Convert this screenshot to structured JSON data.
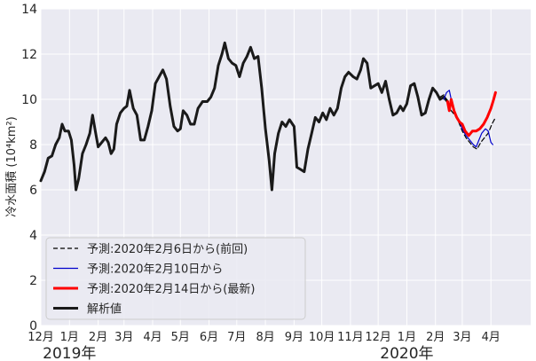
{
  "chart_data": {
    "type": "line",
    "xlabel": "",
    "ylabel": "冷水面積 (10⁴km²)",
    "ylim": [
      0,
      14
    ],
    "yticks": [
      0,
      2,
      4,
      6,
      8,
      10,
      12,
      14
    ],
    "x_range": [
      "2018-12-01",
      "2020-05-14"
    ],
    "month_ticks": [
      {
        "date": "2018-12-01",
        "label": "12月"
      },
      {
        "date": "2019-01-01",
        "label": "1月"
      },
      {
        "date": "2019-02-01",
        "label": "2月"
      },
      {
        "date": "2019-03-01",
        "label": "3月"
      },
      {
        "date": "2019-04-01",
        "label": "4月"
      },
      {
        "date": "2019-05-01",
        "label": "5月"
      },
      {
        "date": "2019-06-01",
        "label": "6月"
      },
      {
        "date": "2019-07-01",
        "label": "7月"
      },
      {
        "date": "2019-08-01",
        "label": "8月"
      },
      {
        "date": "2019-09-01",
        "label": "9月"
      },
      {
        "date": "2019-10-01",
        "label": "10月"
      },
      {
        "date": "2019-11-01",
        "label": "11月"
      },
      {
        "date": "2019-12-01",
        "label": "12月"
      },
      {
        "date": "2020-01-01",
        "label": "1月"
      },
      {
        "date": "2020-02-01",
        "label": "2月"
      },
      {
        "date": "2020-03-01",
        "label": "3月"
      },
      {
        "date": "2020-04-01",
        "label": "4月"
      }
    ],
    "year_labels": [
      {
        "date": "2019-01-01",
        "label": "2019年"
      },
      {
        "date": "2020-01-01",
        "label": "2020年"
      }
    ],
    "grid": true,
    "background": "#eaeaf2",
    "legend_position": "lower-left",
    "series": [
      {
        "name": "解析値",
        "color": "#1a1a1a",
        "style": "solid",
        "width": 3,
        "points": [
          [
            "2018-12-01",
            6.4
          ],
          [
            "2018-12-05",
            6.8
          ],
          [
            "2018-12-09",
            7.4
          ],
          [
            "2018-12-13",
            7.5
          ],
          [
            "2018-12-17",
            8.0
          ],
          [
            "2018-12-21",
            8.3
          ],
          [
            "2018-12-24",
            8.9
          ],
          [
            "2018-12-27",
            8.6
          ],
          [
            "2018-12-31",
            8.6
          ],
          [
            "2019-01-03",
            8.2
          ],
          [
            "2019-01-06",
            7.1
          ],
          [
            "2019-01-08",
            6.0
          ],
          [
            "2019-01-11",
            6.5
          ],
          [
            "2019-01-15",
            7.6
          ],
          [
            "2019-01-19",
            8.0
          ],
          [
            "2019-01-23",
            8.5
          ],
          [
            "2019-01-26",
            9.3
          ],
          [
            "2019-01-29",
            8.6
          ],
          [
            "2019-02-01",
            7.9
          ],
          [
            "2019-02-05",
            8.1
          ],
          [
            "2019-02-09",
            8.3
          ],
          [
            "2019-02-12",
            8.1
          ],
          [
            "2019-02-15",
            7.6
          ],
          [
            "2019-02-18",
            7.8
          ],
          [
            "2019-02-21",
            8.9
          ],
          [
            "2019-02-25",
            9.4
          ],
          [
            "2019-03-01",
            9.6
          ],
          [
            "2019-03-04",
            9.7
          ],
          [
            "2019-03-07",
            10.4
          ],
          [
            "2019-03-11",
            9.6
          ],
          [
            "2019-03-15",
            9.3
          ],
          [
            "2019-03-19",
            8.2
          ],
          [
            "2019-03-23",
            8.2
          ],
          [
            "2019-03-27",
            8.8
          ],
          [
            "2019-03-31",
            9.5
          ],
          [
            "2019-04-04",
            10.7
          ],
          [
            "2019-04-08",
            11.0
          ],
          [
            "2019-04-12",
            11.3
          ],
          [
            "2019-04-16",
            10.9
          ],
          [
            "2019-04-20",
            9.7
          ],
          [
            "2019-04-24",
            8.8
          ],
          [
            "2019-04-28",
            8.6
          ],
          [
            "2019-05-01",
            8.7
          ],
          [
            "2019-05-04",
            9.5
          ],
          [
            "2019-05-08",
            9.3
          ],
          [
            "2019-05-12",
            8.9
          ],
          [
            "2019-05-16",
            8.9
          ],
          [
            "2019-05-20",
            9.6
          ],
          [
            "2019-05-25",
            9.9
          ],
          [
            "2019-05-30",
            9.9
          ],
          [
            "2019-06-03",
            10.1
          ],
          [
            "2019-06-07",
            10.5
          ],
          [
            "2019-06-11",
            11.5
          ],
          [
            "2019-06-15",
            12.0
          ],
          [
            "2019-06-18",
            12.5
          ],
          [
            "2019-06-22",
            11.8
          ],
          [
            "2019-06-26",
            11.6
          ],
          [
            "2019-06-30",
            11.5
          ],
          [
            "2019-07-04",
            11.0
          ],
          [
            "2019-07-08",
            11.6
          ],
          [
            "2019-07-12",
            11.9
          ],
          [
            "2019-07-16",
            12.3
          ],
          [
            "2019-07-20",
            11.8
          ],
          [
            "2019-07-24",
            11.9
          ],
          [
            "2019-07-28",
            10.5
          ],
          [
            "2019-08-01",
            8.7
          ],
          [
            "2019-08-05",
            7.3
          ],
          [
            "2019-08-08",
            6.0
          ],
          [
            "2019-08-11",
            7.6
          ],
          [
            "2019-08-15",
            8.5
          ],
          [
            "2019-08-19",
            9.0
          ],
          [
            "2019-08-23",
            8.8
          ],
          [
            "2019-08-27",
            9.1
          ],
          [
            "2019-09-01",
            8.8
          ],
          [
            "2019-09-04",
            7.0
          ],
          [
            "2019-09-08",
            6.9
          ],
          [
            "2019-09-12",
            6.8
          ],
          [
            "2019-09-16",
            7.8
          ],
          [
            "2019-09-20",
            8.5
          ],
          [
            "2019-09-24",
            9.2
          ],
          [
            "2019-09-28",
            9.0
          ],
          [
            "2019-10-02",
            9.4
          ],
          [
            "2019-10-06",
            9.1
          ],
          [
            "2019-10-10",
            9.6
          ],
          [
            "2019-10-14",
            9.3
          ],
          [
            "2019-10-18",
            9.6
          ],
          [
            "2019-10-22",
            10.5
          ],
          [
            "2019-10-26",
            11.0
          ],
          [
            "2019-10-30",
            11.2
          ],
          [
            "2019-11-04",
            11.0
          ],
          [
            "2019-11-08",
            10.9
          ],
          [
            "2019-11-12",
            11.3
          ],
          [
            "2019-11-15",
            11.8
          ],
          [
            "2019-11-19",
            11.6
          ],
          [
            "2019-11-23",
            10.5
          ],
          [
            "2019-11-27",
            10.6
          ],
          [
            "2019-12-01",
            10.7
          ],
          [
            "2019-12-05",
            10.3
          ],
          [
            "2019-12-09",
            10.8
          ],
          [
            "2019-12-13",
            10.0
          ],
          [
            "2019-12-17",
            9.3
          ],
          [
            "2019-12-21",
            9.4
          ],
          [
            "2019-12-25",
            9.7
          ],
          [
            "2019-12-28",
            9.5
          ],
          [
            "2020-01-01",
            9.8
          ],
          [
            "2020-01-05",
            10.6
          ],
          [
            "2020-01-09",
            10.7
          ],
          [
            "2020-01-13",
            10.1
          ],
          [
            "2020-01-17",
            9.3
          ],
          [
            "2020-01-21",
            9.4
          ],
          [
            "2020-01-25",
            10.0
          ],
          [
            "2020-01-29",
            10.5
          ],
          [
            "2020-02-02",
            10.3
          ],
          [
            "2020-02-06",
            10.0
          ],
          [
            "2020-02-10",
            10.1
          ],
          [
            "2020-02-14",
            9.9
          ]
        ]
      },
      {
        "name": "予測:2020年2月6日から(前回)",
        "color": "#000000",
        "style": "dashed",
        "width": 1.2,
        "points": [
          [
            "2020-02-06",
            10.1
          ],
          [
            "2020-02-10",
            10.2
          ],
          [
            "2020-02-14",
            9.9
          ],
          [
            "2020-02-18",
            9.5
          ],
          [
            "2020-02-22",
            9.3
          ],
          [
            "2020-02-26",
            9.0
          ],
          [
            "2020-03-01",
            8.6
          ],
          [
            "2020-03-05",
            8.3
          ],
          [
            "2020-03-09",
            8.1
          ],
          [
            "2020-03-13",
            7.9
          ],
          [
            "2020-03-17",
            7.8
          ],
          [
            "2020-03-21",
            8.1
          ],
          [
            "2020-03-25",
            8.3
          ],
          [
            "2020-03-29",
            8.5
          ],
          [
            "2020-04-02",
            8.9
          ],
          [
            "2020-04-06",
            9.2
          ]
        ]
      },
      {
        "name": "予測:2020年2月10日から",
        "color": "#0000cc",
        "style": "solid",
        "width": 1.2,
        "points": [
          [
            "2020-02-10",
            10.0
          ],
          [
            "2020-02-13",
            10.3
          ],
          [
            "2020-02-16",
            10.4
          ],
          [
            "2020-02-19",
            9.8
          ],
          [
            "2020-02-22",
            9.4
          ],
          [
            "2020-02-26",
            9.1
          ],
          [
            "2020-03-01",
            8.7
          ],
          [
            "2020-03-05",
            8.4
          ],
          [
            "2020-03-09",
            8.2
          ],
          [
            "2020-03-13",
            8.0
          ],
          [
            "2020-03-16",
            7.9
          ],
          [
            "2020-03-19",
            8.2
          ],
          [
            "2020-03-22",
            8.5
          ],
          [
            "2020-03-26",
            8.7
          ],
          [
            "2020-03-29",
            8.6
          ],
          [
            "2020-04-01",
            8.1
          ],
          [
            "2020-04-03",
            8.0
          ]
        ]
      },
      {
        "name": "予測:2020年2月14日から(最新)",
        "color": "#ff0000",
        "style": "solid",
        "width": 3,
        "points": [
          [
            "2020-02-14",
            9.9
          ],
          [
            "2020-02-16",
            9.5
          ],
          [
            "2020-02-18",
            10.0
          ],
          [
            "2020-02-21",
            9.5
          ],
          [
            "2020-02-24",
            9.2
          ],
          [
            "2020-02-27",
            9.0
          ],
          [
            "2020-03-01",
            8.9
          ],
          [
            "2020-03-04",
            8.6
          ],
          [
            "2020-03-08",
            8.4
          ],
          [
            "2020-03-12",
            8.6
          ],
          [
            "2020-03-16",
            8.6
          ],
          [
            "2020-03-20",
            8.7
          ],
          [
            "2020-03-24",
            8.9
          ],
          [
            "2020-03-28",
            9.2
          ],
          [
            "2020-04-01",
            9.6
          ],
          [
            "2020-04-04",
            10.0
          ],
          [
            "2020-04-06",
            10.3
          ]
        ]
      }
    ]
  }
}
